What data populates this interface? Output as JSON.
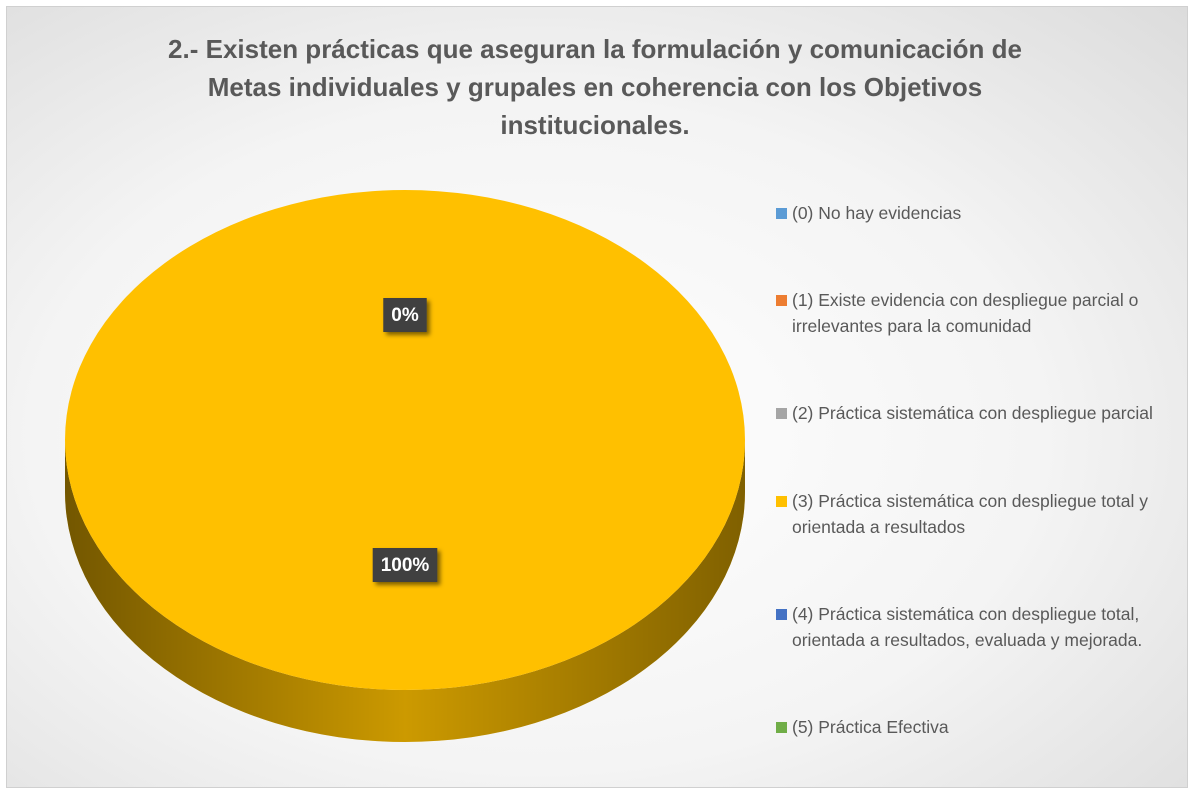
{
  "chart_data": {
    "type": "pie",
    "title": "2.- Existen prácticas que aseguran la formulación y comunicación de Metas individuales y grupales en coherencia con los Objetivos institucionales.",
    "categories": [
      "(0) No hay evidencias",
      "(1) Existe evidencia con despliegue parcial o irrelevantes para la comunidad",
      "(2) Práctica sistemática con despliegue parcial",
      "(3) Práctica sistemática con despliegue total y orientada a resultados",
      "(4) Práctica sistemática con despliegue total, orientada a resultados, evaluada y mejorada.",
      "(5) Práctica Efectiva"
    ],
    "values": [
      0,
      0,
      0,
      100,
      0,
      0
    ],
    "value_labels": [
      "0%",
      null,
      null,
      "100%",
      null,
      null
    ],
    "colors": [
      "#5b9bd5",
      "#ed7d31",
      "#a5a5a5",
      "#ffc000",
      "#4472c4",
      "#70ad47"
    ],
    "legend": "right"
  }
}
